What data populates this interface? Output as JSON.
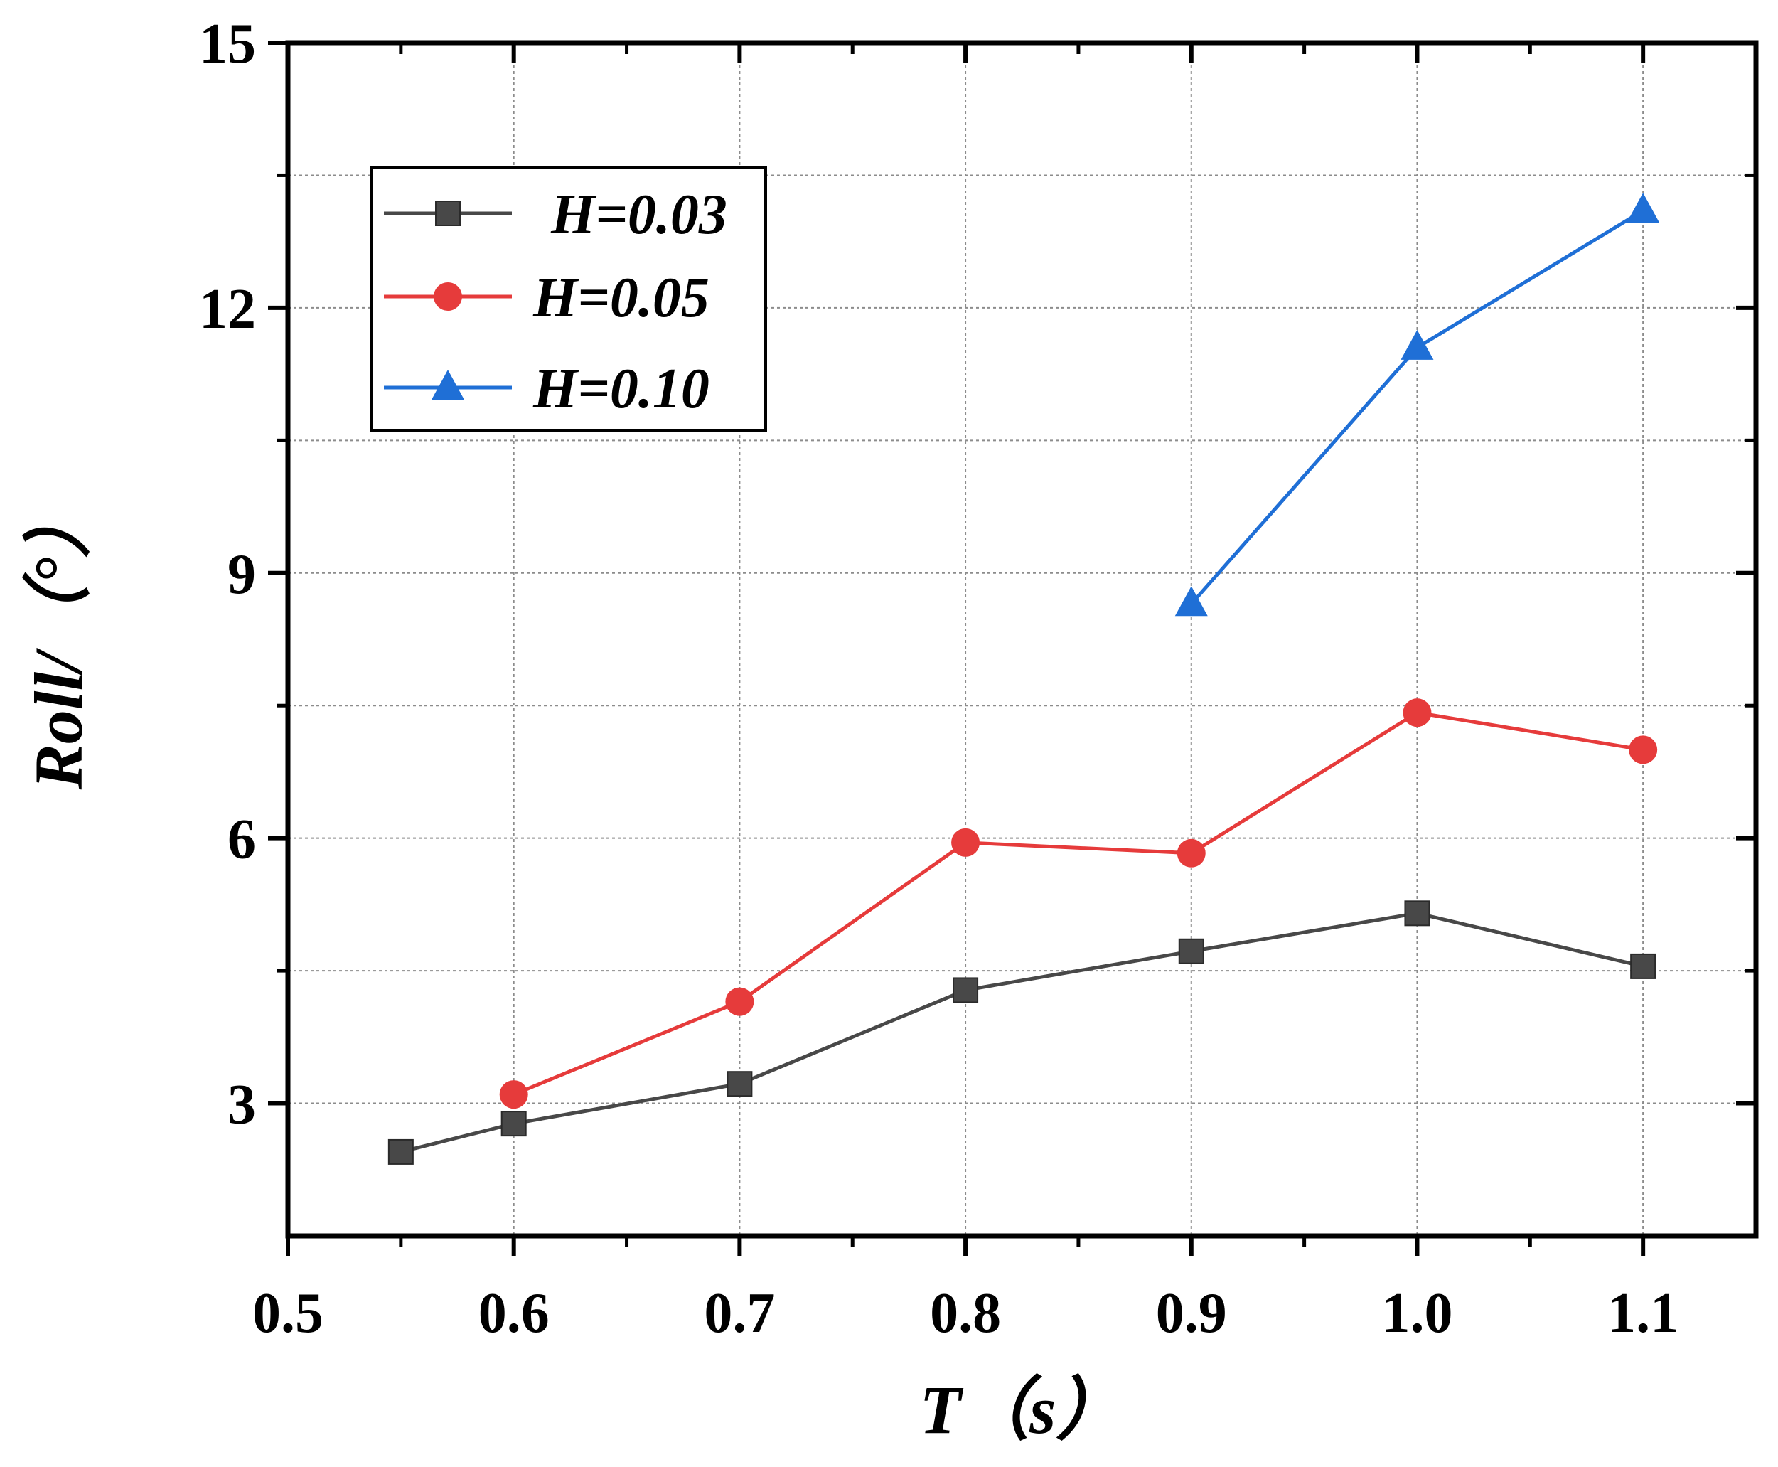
{
  "chart_data": {
    "type": "line",
    "title": "",
    "xlabel": "T（s）",
    "ylabel": "Roll/（°）",
    "xlim": [
      0.5,
      1.15
    ],
    "ylim": [
      1.5,
      15
    ],
    "x_ticks": [
      0.5,
      0.6,
      0.7,
      0.8,
      0.9,
      1.0,
      1.1
    ],
    "x_tick_labels": [
      "0.5",
      "0.6",
      "0.7",
      "0.8",
      "0.9",
      "1.0",
      "1.1"
    ],
    "y_ticks": [
      3,
      6,
      9,
      12,
      15
    ],
    "y_tick_labels": [
      "3",
      "6",
      "9",
      "12",
      "15"
    ],
    "y_minor_grid": [
      4.5,
      7.5,
      10.5,
      13.5
    ],
    "grid": true,
    "legend_position": "top-left",
    "series": [
      {
        "name": "H=0.03",
        "color": "#484848",
        "marker": "square",
        "x": [
          0.55,
          0.6,
          0.7,
          0.8,
          0.9,
          1.0,
          1.1
        ],
        "y": [
          2.45,
          2.77,
          3.22,
          4.28,
          4.72,
          5.15,
          4.55
        ]
      },
      {
        "name": "H=0.05",
        "color": "#e63b3b",
        "marker": "circle",
        "x": [
          0.6,
          0.7,
          0.8,
          0.9,
          1.0,
          1.1
        ],
        "y": [
          3.1,
          4.15,
          5.95,
          5.83,
          7.42,
          7.0
        ]
      },
      {
        "name": "H=0.10",
        "color": "#1f6fd6",
        "marker": "triangle",
        "x": [
          0.9,
          1.0,
          1.1
        ],
        "y": [
          8.65,
          11.55,
          13.1
        ]
      }
    ]
  }
}
